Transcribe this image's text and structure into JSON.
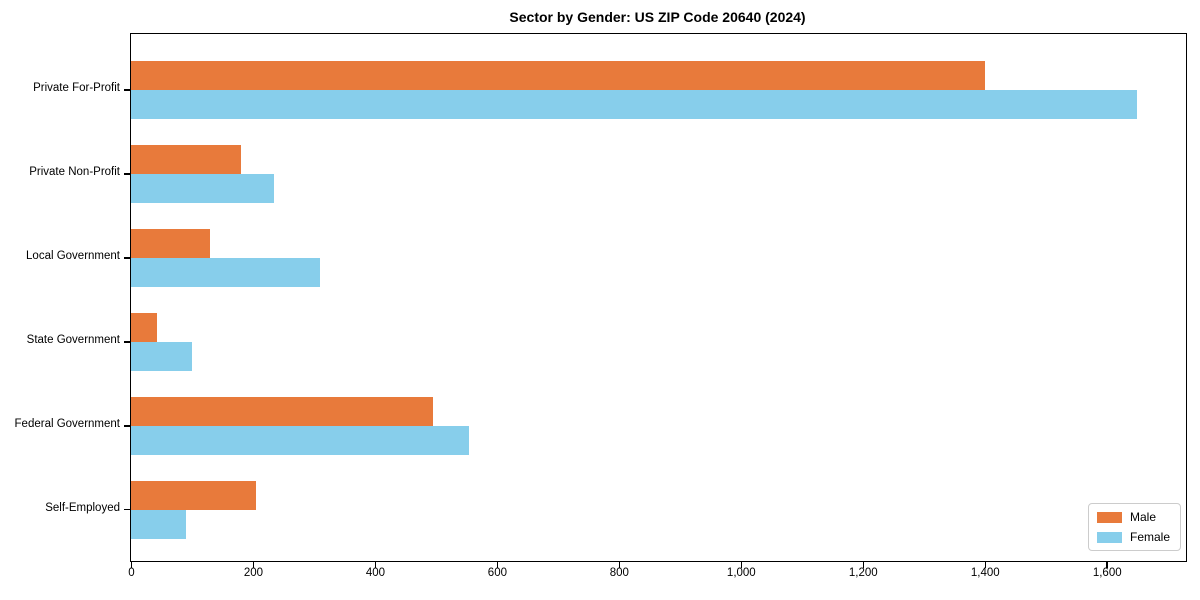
{
  "title": "Sector by Gender: US ZIP Code 20640 (2024)",
  "chart_data": {
    "type": "bar",
    "orientation": "horizontal",
    "title": "Sector by Gender: US ZIP Code 20640 (2024)",
    "categories": [
      "Private For-Profit",
      "Private Non-Profit",
      "Local Government",
      "State Government",
      "Federal Government",
      "Self-Employed"
    ],
    "series": [
      {
        "name": "Male",
        "color": "#E87A3B",
        "values": [
          1400,
          180,
          130,
          42,
          495,
          205
        ]
      },
      {
        "name": "Female",
        "color": "#87CEEB",
        "values": [
          1650,
          235,
          310,
          100,
          555,
          90
        ]
      }
    ],
    "xlabel": "",
    "ylabel": "",
    "xlim": [
      0,
      1730
    ],
    "x_ticks": [
      0,
      200,
      400,
      600,
      800,
      1000,
      1200,
      1400,
      1600
    ],
    "x_tick_labels": [
      "0",
      "200",
      "400",
      "600",
      "800",
      "1,000",
      "1,200",
      "1,400",
      "1,600"
    ],
    "grid": false,
    "legend": {
      "position": "lower right",
      "items": [
        {
          "label": "Male",
          "color": "#E87A3B"
        },
        {
          "label": "Female",
          "color": "#87CEEB"
        }
      ]
    }
  }
}
